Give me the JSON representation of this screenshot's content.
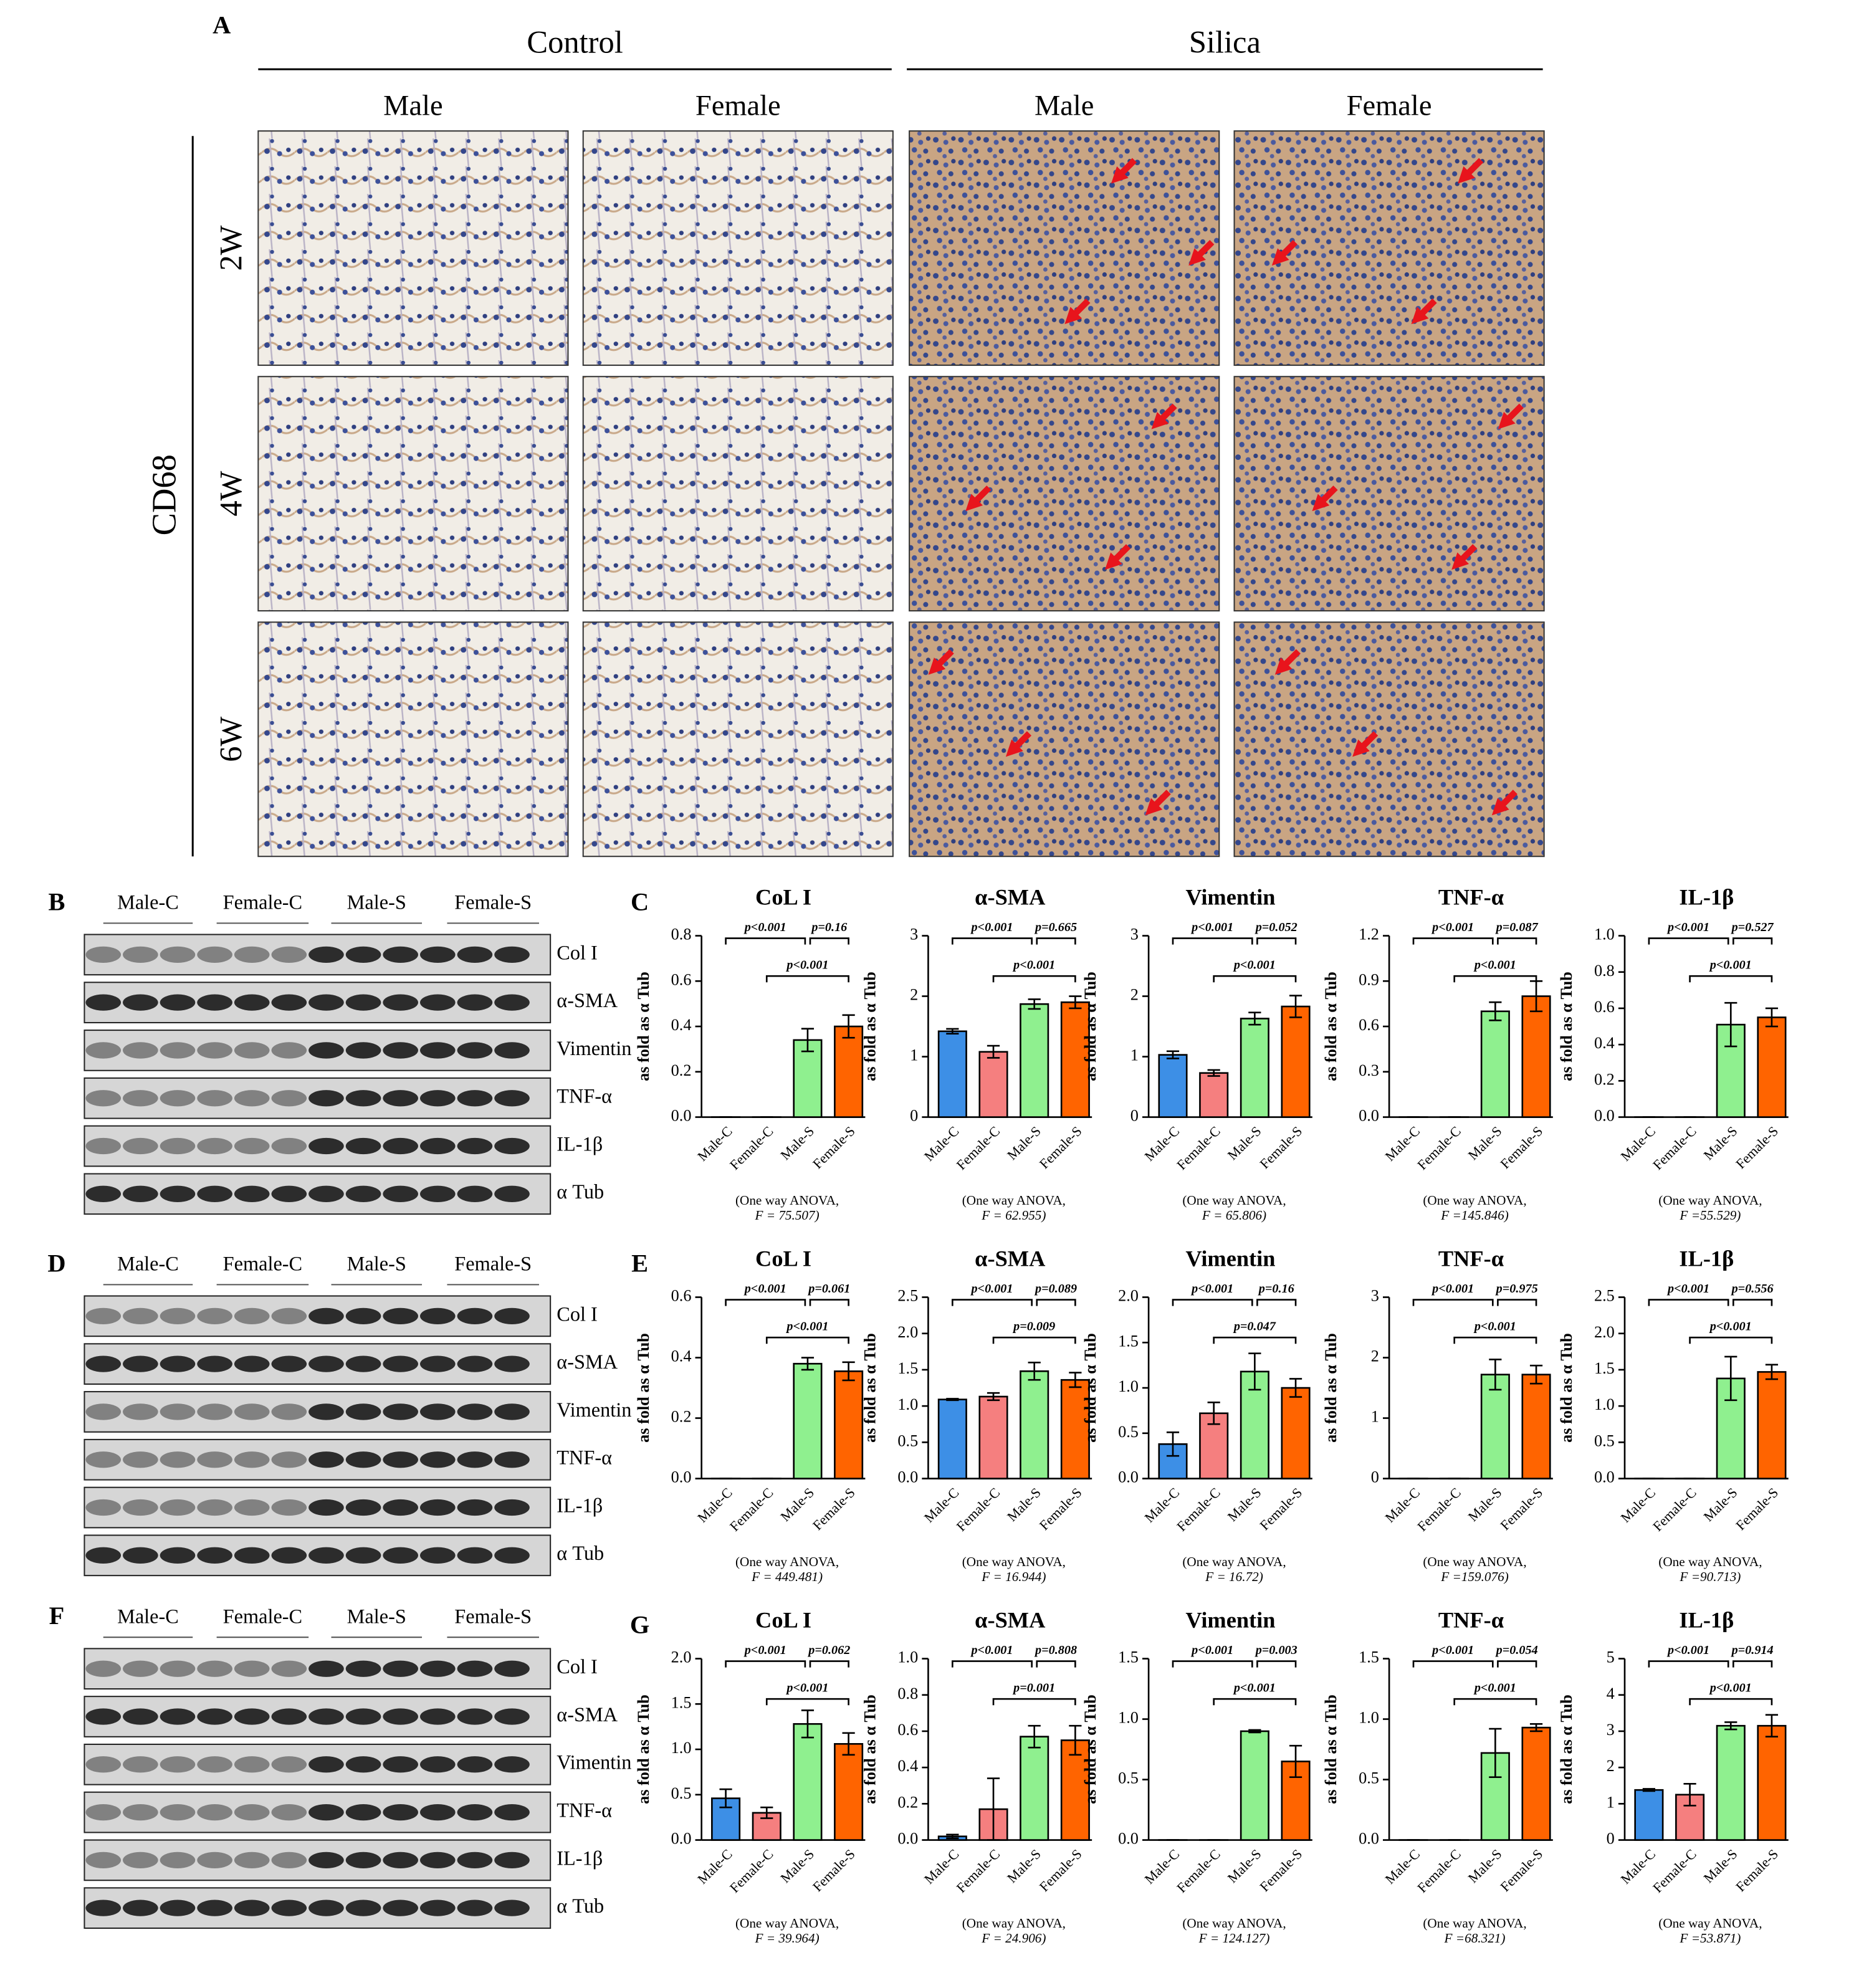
{
  "panel_a": {
    "label": "A",
    "groups": [
      "Control",
      "Silica"
    ],
    "columns": [
      "Male",
      "Female",
      "Male",
      "Female"
    ],
    "stain": "CD68",
    "rows": [
      "2W",
      "4W",
      "6W"
    ]
  },
  "blots": [
    {
      "label": "B",
      "lanes": [
        "Male-C",
        "Female-C",
        "Male-S",
        "Female-S"
      ],
      "proteins": [
        "Col I",
        "α-SMA",
        "Vimentin",
        "TNF-α",
        "IL-1β",
        "α Tub"
      ]
    },
    {
      "label": "D",
      "lanes": [
        "Male-C",
        "Female-C",
        "Male-S",
        "Female-S"
      ],
      "proteins": [
        "Col I",
        "α-SMA",
        "Vimentin",
        "TNF-α",
        "IL-1β",
        "α Tub"
      ]
    },
    {
      "label": "F",
      "lanes": [
        "Male-C",
        "Female-C",
        "Male-S",
        "Female-S"
      ],
      "proteins": [
        "Col I",
        "α-SMA",
        "Vimentin",
        "TNF-α",
        "IL-1β",
        "α Tub"
      ]
    }
  ],
  "chart_panels": [
    "C",
    "E",
    "G"
  ],
  "chart_data": [
    {
      "type": "bar",
      "title": "CoL I",
      "y_label": "as fold as α Tub",
      "categories": [
        "Male-C",
        "Female-C",
        "Male-S",
        "Female-S"
      ],
      "values": [
        0,
        0,
        0.34,
        0.4
      ],
      "errors": [
        0,
        0,
        0.05,
        0.05
      ],
      "colors": [
        "#3d8fe6",
        "#f57f7f",
        "#8ff08f",
        "#ff6400"
      ],
      "ylim": [
        0,
        0.8
      ],
      "yticks": [
        {
          "value": 0,
          "label": "0.0"
        },
        0.2,
        0.4,
        0.6,
        0.8
      ],
      "annotations": [
        "p<0.001",
        "p=0.16",
        "p<0.001"
      ],
      "note": [
        "(One way ANOVA,",
        "F = 75.507)"
      ]
    },
    {
      "type": "bar",
      "title": "α-SMA",
      "y_label": "as fold as α Tub",
      "categories": [
        "Male-C",
        "Female-C",
        "Male-S",
        "Female-S"
      ],
      "values": [
        1.42,
        1.08,
        1.87,
        1.9
      ],
      "errors": [
        0.04,
        0.1,
        0.08,
        0.1
      ],
      "colors": [
        "#3d8fe6",
        "#f57f7f",
        "#8ff08f",
        "#ff6400"
      ],
      "ylim": [
        0,
        3
      ],
      "yticks": [
        0,
        1,
        2,
        3
      ],
      "annotations": [
        "p<0.001",
        "p=0.665",
        "p<0.001"
      ],
      "note": [
        "(One way ANOVA,",
        "F = 62.955)"
      ]
    },
    {
      "type": "bar",
      "title": "Vimentin",
      "y_label": "as fold as α Tub",
      "categories": [
        "Male-C",
        "Female-C",
        "Male-S",
        "Female-S"
      ],
      "values": [
        1.03,
        0.73,
        1.63,
        1.83
      ],
      "errors": [
        0.06,
        0.05,
        0.1,
        0.18
      ],
      "colors": [
        "#3d8fe6",
        "#f57f7f",
        "#8ff08f",
        "#ff6400"
      ],
      "ylim": [
        0,
        3
      ],
      "yticks": [
        0,
        1,
        2,
        3
      ],
      "annotations": [
        "p<0.001",
        "p=0.052",
        "p<0.001"
      ],
      "note": [
        "(One way ANOVA,",
        "F = 65.806)"
      ]
    },
    {
      "type": "bar",
      "title": "TNF-α",
      "y_label": "as fold as α Tub",
      "categories": [
        "Male-C",
        "Female-C",
        "Male-S",
        "Female-S"
      ],
      "values": [
        0,
        0,
        0.7,
        0.8
      ],
      "errors": [
        0,
        0,
        0.06,
        0.1
      ],
      "colors": [
        "#3d8fe6",
        "#f57f7f",
        "#8ff08f",
        "#ff6400"
      ],
      "ylim": [
        0,
        1.2
      ],
      "yticks": [
        {
          "value": 0,
          "label": "0.0"
        },
        0.3,
        0.6,
        0.9,
        1.2
      ],
      "annotations": [
        "p<0.001",
        "p=0.087",
        "p<0.001"
      ],
      "note": [
        "(One way ANOVA,",
        "F =145.846)"
      ]
    },
    {
      "type": "bar",
      "title": "IL-1β",
      "y_label": "as fold as α Tub",
      "categories": [
        "Male-C",
        "Female-C",
        "Male-S",
        "Female-S"
      ],
      "values": [
        0,
        0,
        0.51,
        0.55
      ],
      "errors": [
        0,
        0,
        0.12,
        0.05
      ],
      "colors": [
        "#3d8fe6",
        "#f57f7f",
        "#8ff08f",
        "#ff6400"
      ],
      "ylim": [
        0,
        1
      ],
      "yticks": [
        {
          "value": 0,
          "label": "0.0"
        },
        0.2,
        0.4,
        0.6,
        0.8,
        {
          "value": 1,
          "label": "1.0"
        }
      ],
      "annotations": [
        "p<0.001",
        "p=0.527",
        "p<0.001"
      ],
      "note": [
        "(One way ANOVA,",
        "F =55.529)"
      ]
    },
    {
      "type": "bar",
      "title": "CoL I",
      "y_label": "as fold as α Tub",
      "categories": [
        "Male-C",
        "Female-C",
        "Male-S",
        "Female-S"
      ],
      "values": [
        0,
        0,
        0.38,
        0.355
      ],
      "errors": [
        0,
        0,
        0.02,
        0.03
      ],
      "colors": [
        "#3d8fe6",
        "#f57f7f",
        "#8ff08f",
        "#ff6400"
      ],
      "ylim": [
        0,
        0.6
      ],
      "yticks": [
        {
          "value": 0,
          "label": "0.0"
        },
        0.2,
        0.4,
        0.6
      ],
      "annotations": [
        "p<0.001",
        "p=0.061",
        "p<0.001"
      ],
      "note": [
        "(One way ANOVA,",
        "F = 449.481)"
      ]
    },
    {
      "type": "bar",
      "title": "α-SMA",
      "y_label": "as fold as α Tub",
      "categories": [
        "Male-C",
        "Female-C",
        "Male-S",
        "Female-S"
      ],
      "values": [
        1.09,
        1.13,
        1.48,
        1.36
      ],
      "errors": [
        0.01,
        0.05,
        0.12,
        0.1
      ],
      "colors": [
        "#3d8fe6",
        "#f57f7f",
        "#8ff08f",
        "#ff6400"
      ],
      "ylim": [
        0,
        2.5
      ],
      "yticks": [
        {
          "value": 0,
          "label": "0.0"
        },
        0.5,
        {
          "value": 1,
          "label": "1.0"
        },
        1.5,
        {
          "value": 2,
          "label": "2.0"
        },
        2.5
      ],
      "annotations": [
        "p<0.001",
        "p=0.089",
        "p=0.009"
      ],
      "note": [
        "(One way ANOVA,",
        "F = 16.944)"
      ]
    },
    {
      "type": "bar",
      "title": "Vimentin",
      "y_label": "as fold as α Tub",
      "categories": [
        "Male-C",
        "Female-C",
        "Male-S",
        "Female-S"
      ],
      "values": [
        0.38,
        0.72,
        1.18,
        1.0
      ],
      "errors": [
        0.13,
        0.12,
        0.2,
        0.1
      ],
      "colors": [
        "#3d8fe6",
        "#f57f7f",
        "#8ff08f",
        "#ff6400"
      ],
      "ylim": [
        0,
        2
      ],
      "yticks": [
        {
          "value": 0,
          "label": "0.0"
        },
        0.5,
        {
          "value": 1,
          "label": "1.0"
        },
        1.5,
        {
          "value": 2,
          "label": "2.0"
        }
      ],
      "annotations": [
        "p<0.001",
        "p=0.16",
        "p=0.047"
      ],
      "note": [
        "(One way ANOVA,",
        "F = 16.72)"
      ]
    },
    {
      "type": "bar",
      "title": "TNF-α",
      "y_label": "as fold as α Tub",
      "categories": [
        "Male-C",
        "Female-C",
        "Male-S",
        "Female-S"
      ],
      "values": [
        0,
        0,
        1.72,
        1.72
      ],
      "errors": [
        0,
        0,
        0.25,
        0.15
      ],
      "colors": [
        "#3d8fe6",
        "#f57f7f",
        "#8ff08f",
        "#ff6400"
      ],
      "ylim": [
        0,
        3
      ],
      "yticks": [
        0,
        1,
        2,
        3
      ],
      "annotations": [
        "p<0.001",
        "p=0.975",
        "p<0.001"
      ],
      "note": [
        "(One way ANOVA,",
        "F =159.076)"
      ]
    },
    {
      "type": "bar",
      "title": "IL-1β",
      "y_label": "as fold as α Tub",
      "categories": [
        "Male-C",
        "Female-C",
        "Male-S",
        "Female-S"
      ],
      "values": [
        0,
        0,
        1.38,
        1.47
      ],
      "errors": [
        0,
        0,
        0.3,
        0.1
      ],
      "colors": [
        "#3d8fe6",
        "#f57f7f",
        "#8ff08f",
        "#ff6400"
      ],
      "ylim": [
        0,
        2.5
      ],
      "yticks": [
        {
          "value": 0,
          "label": "0.0"
        },
        0.5,
        {
          "value": 1,
          "label": "1.0"
        },
        1.5,
        {
          "value": 2,
          "label": "2.0"
        },
        2.5
      ],
      "annotations": [
        "p<0.001",
        "p=0.556",
        "p<0.001"
      ],
      "note": [
        "(One way ANOVA,",
        "F =90.713)"
      ]
    },
    {
      "type": "bar",
      "title": "CoL I",
      "y_label": "as fold as α Tub",
      "categories": [
        "Male-C",
        "Female-C",
        "Male-S",
        "Female-S"
      ],
      "values": [
        0.46,
        0.3,
        1.28,
        1.06
      ],
      "errors": [
        0.1,
        0.06,
        0.15,
        0.12
      ],
      "colors": [
        "#3d8fe6",
        "#f57f7f",
        "#8ff08f",
        "#ff6400"
      ],
      "ylim": [
        0,
        2
      ],
      "yticks": [
        {
          "value": 0,
          "label": "0.0"
        },
        0.5,
        {
          "value": 1,
          "label": "1.0"
        },
        1.5,
        {
          "value": 2,
          "label": "2.0"
        }
      ],
      "annotations": [
        "p<0.001",
        "p=0.062",
        "p<0.001"
      ],
      "note": [
        "(One way ANOVA,",
        "F = 39.964)"
      ]
    },
    {
      "type": "bar",
      "title": "α-SMA",
      "y_label": "as fold as α Tub",
      "categories": [
        "Male-C",
        "Female-C",
        "Male-S",
        "Female-S"
      ],
      "values": [
        0.02,
        0.17,
        0.57,
        0.55
      ],
      "errors": [
        0.01,
        0.17,
        0.06,
        0.08
      ],
      "colors": [
        "#3d8fe6",
        "#f57f7f",
        "#8ff08f",
        "#ff6400"
      ],
      "ylim": [
        0,
        1
      ],
      "yticks": [
        {
          "value": 0,
          "label": "0.0"
        },
        0.2,
        0.4,
        0.6,
        0.8,
        {
          "value": 1,
          "label": "1.0"
        }
      ],
      "annotations": [
        "p<0.001",
        "p=0.808",
        "p=0.001"
      ],
      "note": [
        "(One way ANOVA,",
        "F = 24.906)"
      ]
    },
    {
      "type": "bar",
      "title": "Vimentin",
      "y_label": "as fold as α Tub",
      "categories": [
        "Male-C",
        "Female-C",
        "Male-S",
        "Female-S"
      ],
      "values": [
        0,
        0,
        0.9,
        0.65
      ],
      "errors": [
        0,
        0,
        0.01,
        0.13
      ],
      "colors": [
        "#3d8fe6",
        "#f57f7f",
        "#8ff08f",
        "#ff6400"
      ],
      "ylim": [
        0,
        1.5
      ],
      "yticks": [
        {
          "value": 0,
          "label": "0.0"
        },
        0.5,
        {
          "value": 1,
          "label": "1.0"
        },
        1.5
      ],
      "annotations": [
        "p<0.001",
        "p=0.003",
        "p<0.001"
      ],
      "note": [
        "(One way ANOVA,",
        "F = 124.127)"
      ]
    },
    {
      "type": "bar",
      "title": "TNF-α",
      "y_label": "as fold as α Tub",
      "categories": [
        "Male-C",
        "Female-C",
        "Male-S",
        "Female-S"
      ],
      "values": [
        0,
        0,
        0.72,
        0.93
      ],
      "errors": [
        0,
        0,
        0.2,
        0.03
      ],
      "colors": [
        "#3d8fe6",
        "#f57f7f",
        "#8ff08f",
        "#ff6400"
      ],
      "ylim": [
        0,
        1.5
      ],
      "yticks": [
        {
          "value": 0,
          "label": "0.0"
        },
        0.5,
        {
          "value": 1,
          "label": "1.0"
        },
        1.5
      ],
      "annotations": [
        "p<0.001",
        "p=0.054",
        "p<0.001"
      ],
      "note": [
        "(One way ANOVA,",
        "F =68.321)"
      ]
    },
    {
      "type": "bar",
      "title": "IL-1β",
      "y_label": "as fold as α Tub",
      "categories": [
        "Male-C",
        "Female-C",
        "Male-S",
        "Female-S"
      ],
      "values": [
        1.38,
        1.25,
        3.15,
        3.15
      ],
      "errors": [
        0.03,
        0.3,
        0.1,
        0.3
      ],
      "colors": [
        "#3d8fe6",
        "#f57f7f",
        "#8ff08f",
        "#ff6400"
      ],
      "ylim": [
        0,
        5
      ],
      "yticks": [
        0,
        1,
        2,
        3,
        4,
        5
      ],
      "annotations": [
        "p<0.001",
        "p=0.914",
        "p<0.001"
      ],
      "note": [
        "(One way ANOVA,",
        "F =53.871)"
      ]
    }
  ]
}
